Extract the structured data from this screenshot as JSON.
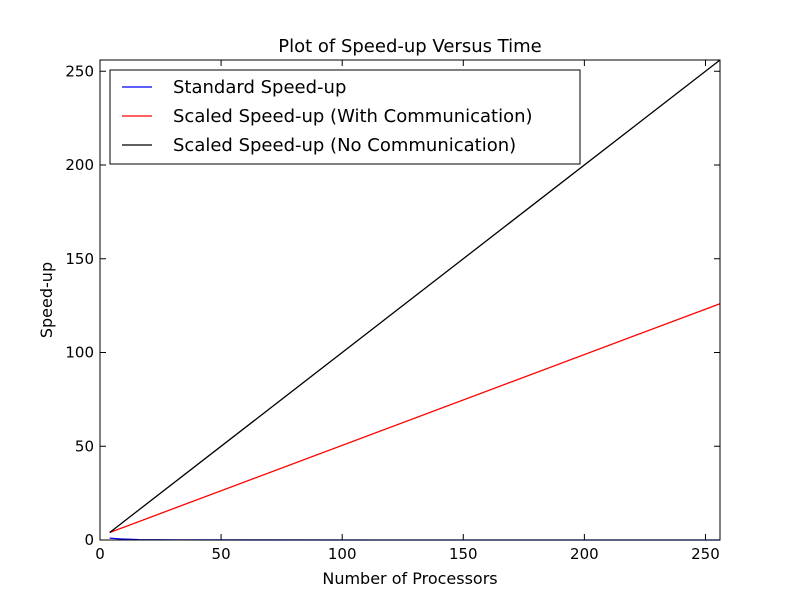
{
  "chart_data": {
    "type": "line",
    "title": "Plot of Speed-up Versus Time",
    "xlabel": "Number of Processors",
    "ylabel": "Speed-up",
    "xlim": [
      0,
      256
    ],
    "ylim": [
      0,
      256
    ],
    "xticks": [
      0,
      50,
      100,
      150,
      200,
      250
    ],
    "yticks": [
      0,
      50,
      100,
      150,
      200,
      250
    ],
    "grid": false,
    "legend_position": "upper-left",
    "series": [
      {
        "name": "Standard Speed-up",
        "color": "#0000ff",
        "x": [
          4,
          8,
          16,
          32,
          64,
          128,
          256
        ],
        "y": [
          1.0,
          0.6,
          0.2,
          0.05,
          0.02,
          0.01,
          0.0
        ]
      },
      {
        "name": "Scaled Speed-up (With Communication)",
        "color": "#ff0000",
        "x": [
          4,
          256
        ],
        "y": [
          4,
          126
        ]
      },
      {
        "name": "Scaled Speed-up (No Communication)",
        "color": "#000000",
        "x": [
          4,
          256
        ],
        "y": [
          4,
          256
        ]
      }
    ]
  }
}
